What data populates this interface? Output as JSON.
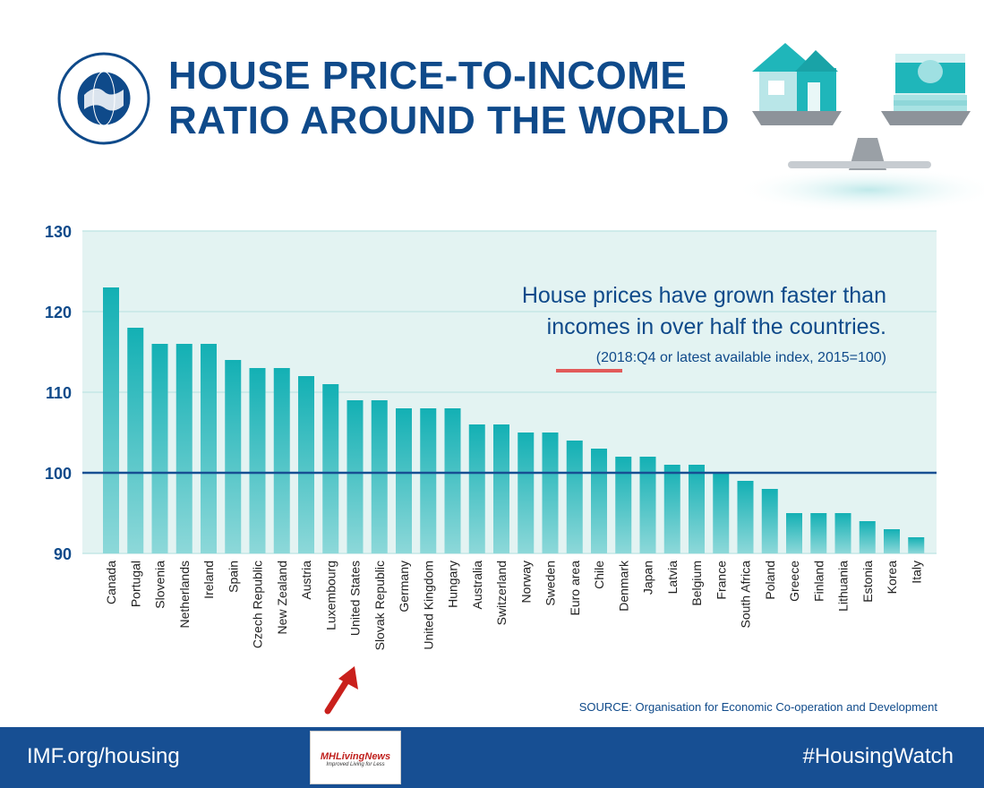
{
  "header": {
    "title_line1": "HOUSE PRICE-TO-INCOME",
    "title_line2": "RATIO AROUND THE WORLD",
    "logo_text": "INTERNATIONAL MONETARY FUND",
    "illustration": "house-and-money-on-scale-icon"
  },
  "annotation": {
    "line1": "House prices have grown faster than",
    "line2": "incomes in over half the countries.",
    "note": "(2018:Q4 or latest available index, 2015=100)"
  },
  "source": "SOURCE: Organisation for Economic Co-operation and Development",
  "footer": {
    "left": "IMF.org/housing",
    "right": "#HousingWatch",
    "badge_brand": "MHLivingNews",
    "badge_tagline": "Improved Living for Less"
  },
  "colors": {
    "bar": "#1ab5b9",
    "plot_bg": "#e3f3f2",
    "reference_line": "#174f93",
    "title": "#0f4a8a",
    "footer": "#174f93",
    "highlight": "#e25a5a"
  },
  "chart_data": {
    "type": "bar",
    "categories": [
      "Canada",
      "Portugal",
      "Slovenia",
      "Netherlands",
      "Ireland",
      "Spain",
      "Czech Republic",
      "New Zealand",
      "Austria",
      "Luxembourg",
      "United States",
      "Slovak Republic",
      "Germany",
      "United Kingdom",
      "Hungary",
      "Australia",
      "Switzerland",
      "Norway",
      "Sweden",
      "Euro area",
      "Chile",
      "Denmark",
      "Japan",
      "Latvia",
      "Belgium",
      "France",
      "South Africa",
      "Poland",
      "Greece",
      "Finland",
      "Lithuania",
      "Estonia",
      "Korea",
      "Italy"
    ],
    "values": [
      123,
      118,
      116,
      116,
      116,
      114,
      113,
      113,
      112,
      111,
      109,
      109,
      108,
      108,
      108,
      106,
      106,
      105,
      105,
      104,
      103,
      102,
      102,
      101,
      101,
      100,
      99,
      98,
      95,
      95,
      95,
      94,
      93,
      92
    ],
    "yticks": [
      "90",
      "100",
      "110",
      "120",
      "130"
    ],
    "ylim": [
      90,
      130
    ],
    "reference_value": 100,
    "grid": true,
    "title": "",
    "xlabel": "",
    "ylabel": ""
  }
}
